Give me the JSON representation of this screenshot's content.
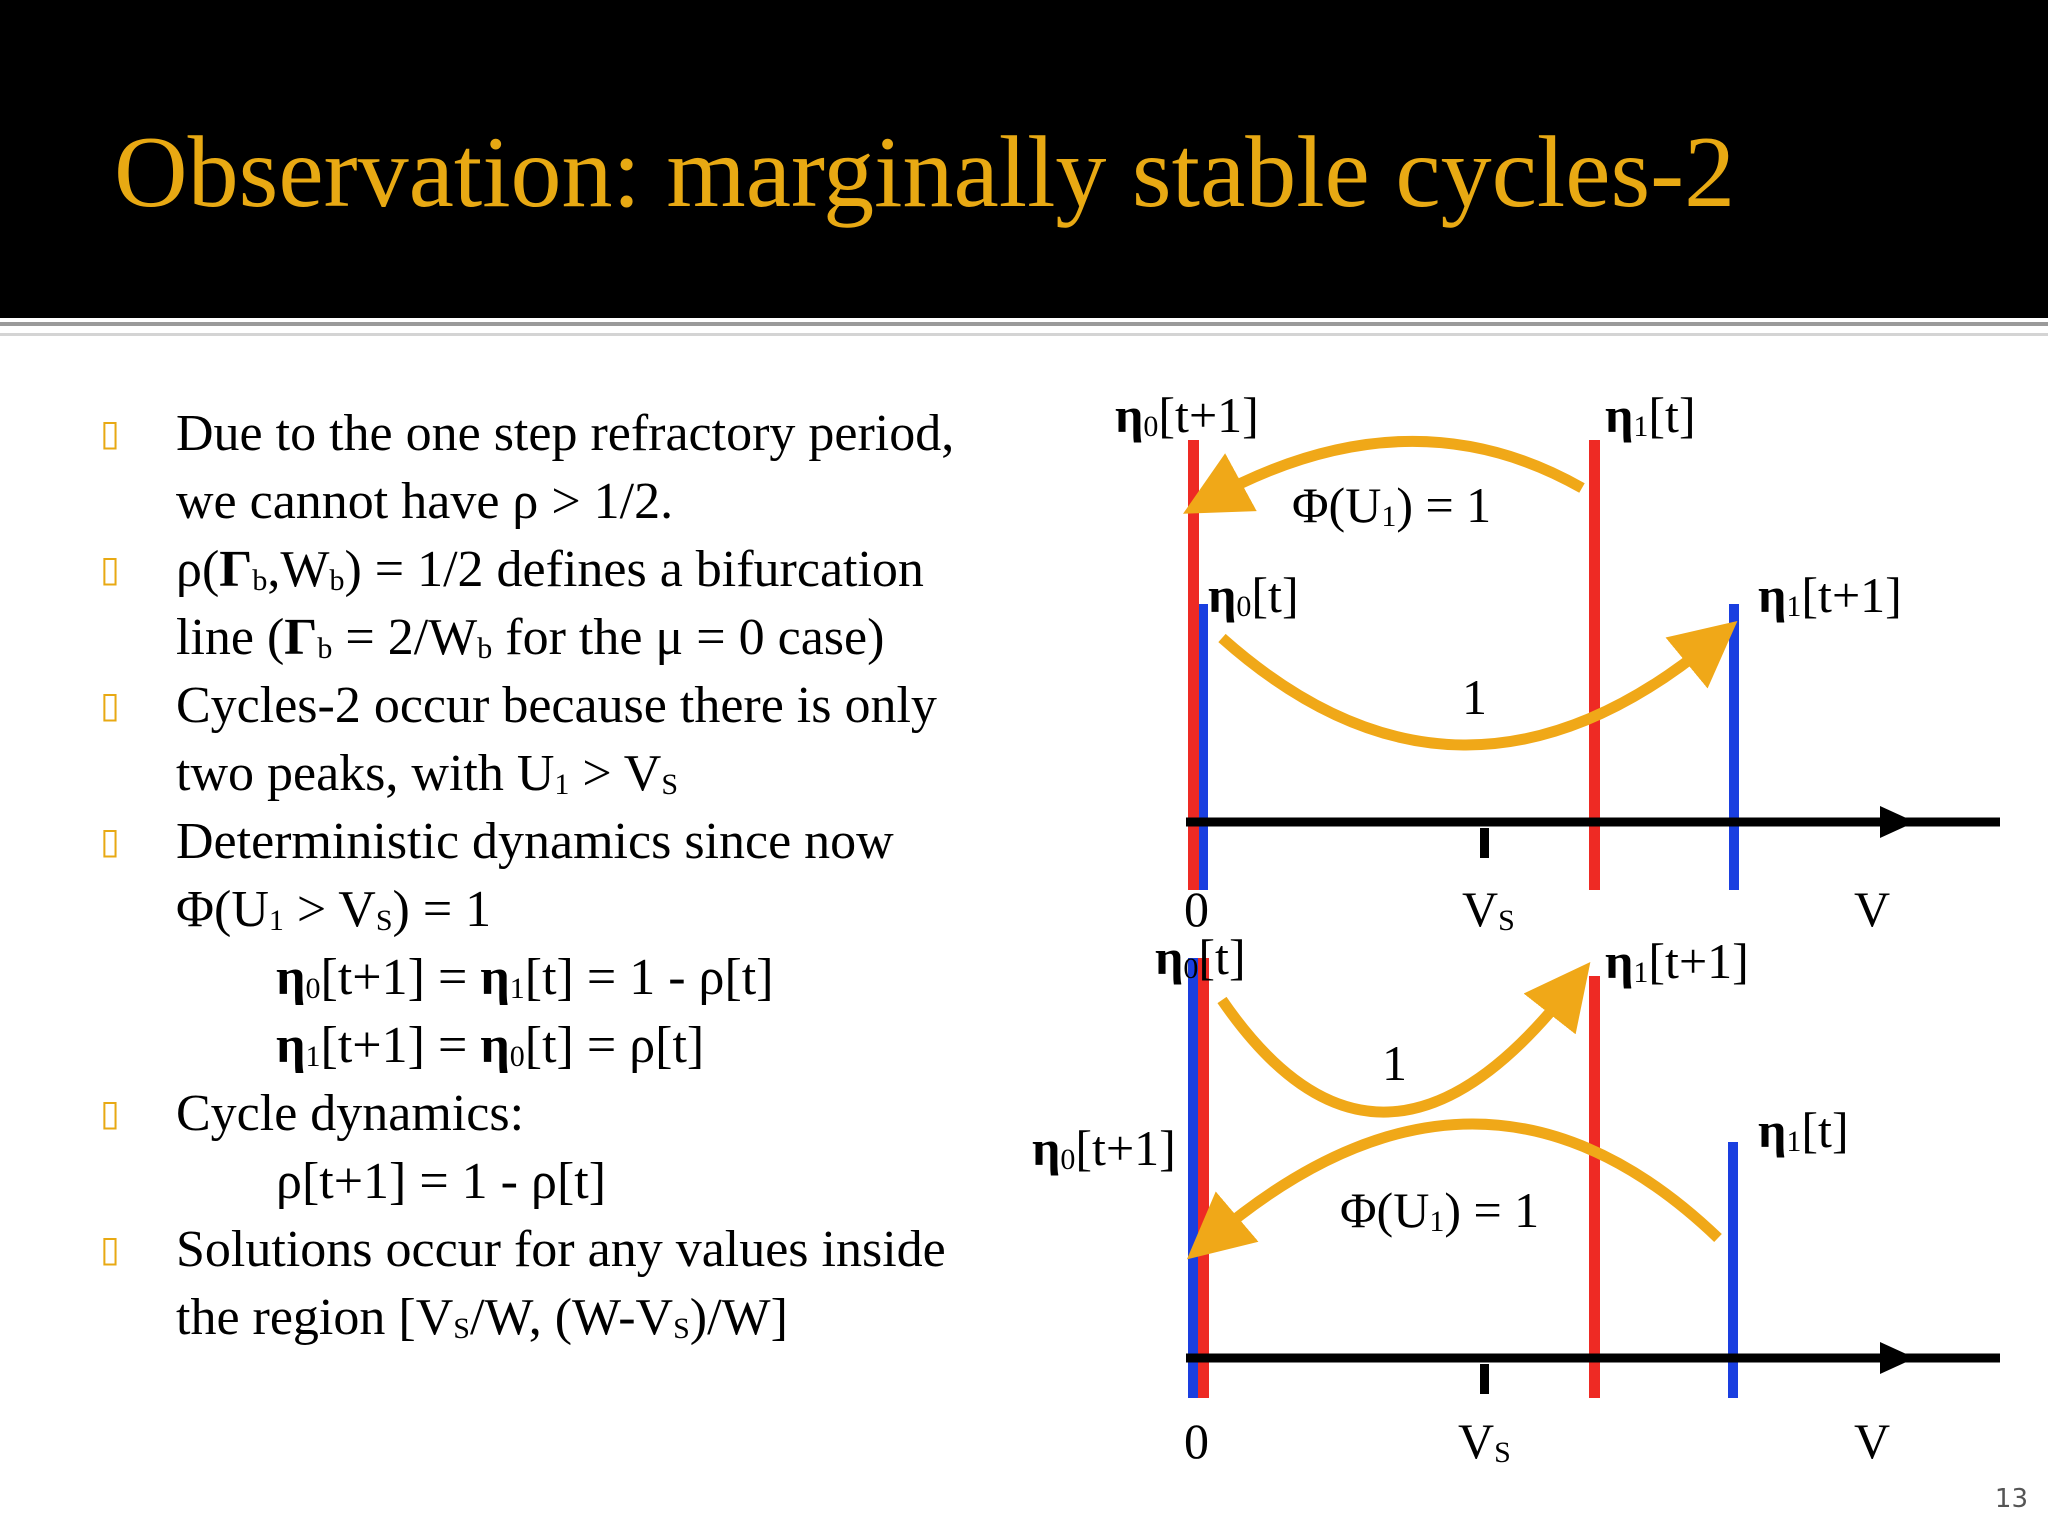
{
  "slide": {
    "title": "Observation: marginally stable cycles-2",
    "page_number": "13"
  },
  "bullets": {
    "b1": {
      "l1": "Due to the one step refractory period,",
      "l2": "we cannot have ρ > 1/2."
    },
    "b2": {
      "rho": " ρ(",
      "G": "Γ",
      "b": "b",
      "comma_W": ",W",
      "b2": "b",
      "rest": ") = 1/2 defines a bifurcation",
      "l2a": "line (",
      "G2": "Γ",
      "b3": "b",
      "l2b": " = 2/W",
      "b4": "b",
      "l2c": " for the μ = 0 case)"
    },
    "b3": {
      "l1": "Cycles-2 occur because there is only",
      "l2a": "two peaks, with U",
      "s1": "1",
      "l2b": " > V",
      "sS": "S"
    },
    "b4": {
      "l1": " Deterministic dynamics since now",
      "l2a": "Φ(U",
      "s1": "1",
      "l2b": " > V",
      "sS": "S",
      "l2c": ") = 1",
      "e1a": "η",
      "e1s": "0",
      "e1b": "[t+1] = ",
      "e1c": "η",
      "e1s2": "1",
      "e1d": "[t] = 1 - ρ[t]",
      "e2a": "η",
      "e2s": "1",
      "e2b": "[t+1] = ",
      "e2c": "η",
      "e2s2": "0",
      "e2d": "[t] = ρ[t]"
    },
    "b5": {
      "l1": "Cycle dynamics:",
      "l2": "ρ[t+1] = 1 - ρ[t]"
    },
    "b6": {
      "l1": "Solutions occur for any values inside",
      "l2a": "the region [V",
      "sS": "S",
      "l2b": "/W, (W-V",
      "sS2": "S",
      "l2c": ")/W]"
    }
  },
  "diagram": {
    "eta": "η",
    "sub0": "0",
    "sub1": "1",
    "t": "[t]",
    "t1": "[t+1]",
    "phi_a": "Φ(U",
    "phi_b": ") = 1",
    "one": "1",
    "axis_zero": "0",
    "axis_vs": "V",
    "axis_vs_sub": "S",
    "axis_v": "V"
  },
  "colors": {
    "title": "#e8a913",
    "bullet": "#e8a913",
    "arrow": "#f0a818",
    "red": "#ee2a24",
    "blue": "#1a3fe0"
  }
}
